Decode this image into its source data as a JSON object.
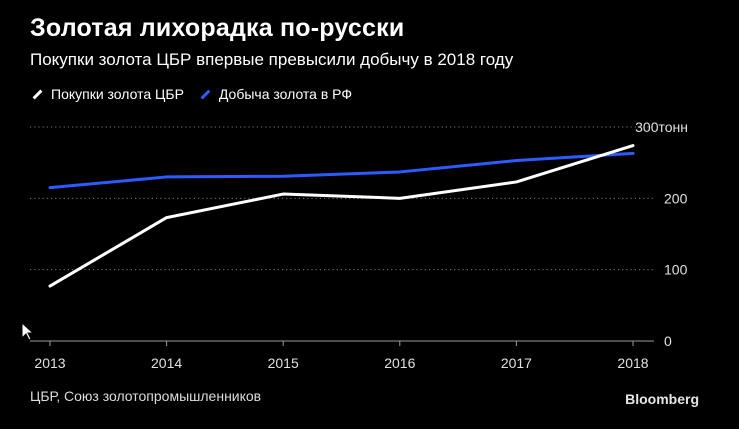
{
  "title": "Золотая лихорадка по-русски",
  "subtitle": "Покупки золота ЦБР впервые превысили добычу в 2018 году",
  "legend": [
    {
      "label": "Покупки золота ЦБР",
      "color": "#ffffff"
    },
    {
      "label": "Добыча золота в РФ",
      "color": "#2a5cff"
    }
  ],
  "source": "ЦБР, Союз золотопромышленников",
  "brand": "Bloomberg",
  "chart_data": {
    "type": "line",
    "x": [
      2013,
      2014,
      2015,
      2016,
      2017,
      2018
    ],
    "x_tick_labels": [
      "2013",
      "2014",
      "2015",
      "2016",
      "2017",
      "2018"
    ],
    "y_tick_labels": [
      "0",
      "100",
      "200",
      "300тонн"
    ],
    "y_ticks": [
      0,
      100,
      200,
      300
    ],
    "ylim": [
      0,
      300
    ],
    "grid": "horizontal dotted",
    "legend_position": "top-left",
    "series": [
      {
        "name": "Покупки золота ЦБР",
        "color": "#ffffff",
        "values": [
          77,
          173,
          206,
          200,
          223,
          274
        ]
      },
      {
        "name": "Добыча золота в РФ",
        "color": "#2a5cff",
        "values": [
          215,
          230,
          231,
          237,
          253,
          263
        ]
      }
    ]
  }
}
